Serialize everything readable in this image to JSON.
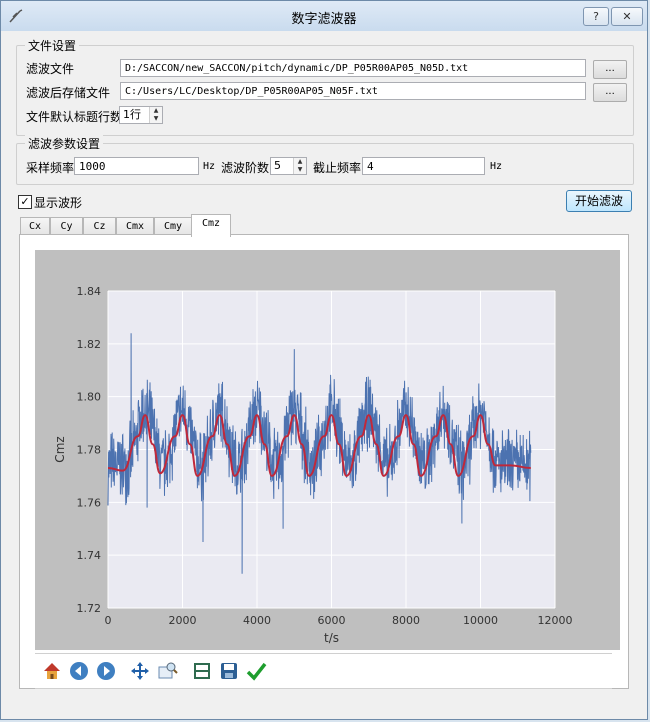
{
  "window": {
    "title": "数字滤波器",
    "help_label": "?",
    "close_label": "✕"
  },
  "file_settings": {
    "group_title": "文件设置",
    "input_label": "滤波文件",
    "input_path": "D:/SACCON/new_SACCON/pitch/dynamic/DP_P05R00AP05_N05D.txt",
    "output_label": "滤波后存储文件",
    "output_path": "C:/Users/LC/Desktop/DP_P05R00AP05_N05F.txt",
    "browse_label": "...",
    "header_rows_label": "文件默认标题行数",
    "header_rows_value": "1行"
  },
  "filter_params": {
    "group_title": "滤波参数设置",
    "sample_rate_label": "采样频率",
    "sample_rate_value": "1000",
    "hz_unit": "Hz",
    "order_label": "滤波阶数",
    "order_value": "5",
    "cutoff_label": "截止频率",
    "cutoff_value": "4"
  },
  "show_waveform_label": "显示波形",
  "show_waveform_checked": true,
  "start_button_label": "开始滤波",
  "tabs": [
    "Cx",
    "Cy",
    "Cz",
    "Cmx",
    "Cmy",
    "Cmz"
  ],
  "active_tab": "Cmz",
  "toolbar_icons": [
    "home-icon",
    "back-icon",
    "forward-icon",
    "pan-icon",
    "zoom-icon",
    "subplots-icon",
    "save-icon",
    "check-icon"
  ],
  "chart_data": {
    "type": "line",
    "xlabel": "t/s",
    "ylabel": "Cmz",
    "xlim": [
      0,
      12000
    ],
    "ylim": [
      1.72,
      1.84
    ],
    "xticks": [
      0,
      2000,
      4000,
      6000,
      8000,
      10000,
      12000
    ],
    "yticks": [
      1.72,
      1.74,
      1.76,
      1.78,
      1.8,
      1.82,
      1.84
    ],
    "grid": true,
    "series": [
      {
        "role": "raw",
        "color": "#4c72b0",
        "x_range": [
          0,
          11350
        ],
        "base": 1.774,
        "cycle_period": 1000,
        "cycle_amplitude": 0.02,
        "cycle_start": 500,
        "cycle_end": 10500,
        "noise_amplitude": 0.01,
        "spikes": [
          [
            620,
            1.824
          ],
          [
            3600,
            1.733
          ],
          [
            2550,
            1.745
          ],
          [
            1050,
            1.758
          ],
          [
            4700,
            1.75
          ],
          [
            5000,
            1.818
          ],
          [
            9500,
            1.752
          ]
        ]
      },
      {
        "role": "filtered",
        "color": "#c0283a",
        "points": [
          [
            0,
            1.773
          ],
          [
            400,
            1.772
          ],
          [
            800,
            1.785
          ],
          [
            1000,
            1.793
          ],
          [
            1200,
            1.782
          ],
          [
            1400,
            1.771
          ],
          [
            1800,
            1.785
          ],
          [
            2000,
            1.793
          ],
          [
            2200,
            1.782
          ],
          [
            2400,
            1.77
          ],
          [
            2800,
            1.785
          ],
          [
            3000,
            1.793
          ],
          [
            3200,
            1.782
          ],
          [
            3400,
            1.77
          ],
          [
            3800,
            1.785
          ],
          [
            4000,
            1.793
          ],
          [
            4200,
            1.782
          ],
          [
            4400,
            1.77
          ],
          [
            4800,
            1.785
          ],
          [
            5000,
            1.793
          ],
          [
            5200,
            1.782
          ],
          [
            5400,
            1.77
          ],
          [
            5800,
            1.785
          ],
          [
            6000,
            1.793
          ],
          [
            6200,
            1.782
          ],
          [
            6400,
            1.77
          ],
          [
            6800,
            1.785
          ],
          [
            7000,
            1.793
          ],
          [
            7200,
            1.782
          ],
          [
            7400,
            1.77
          ],
          [
            7800,
            1.785
          ],
          [
            8000,
            1.793
          ],
          [
            8200,
            1.782
          ],
          [
            8400,
            1.77
          ],
          [
            8800,
            1.785
          ],
          [
            9000,
            1.793
          ],
          [
            9200,
            1.782
          ],
          [
            9400,
            1.77
          ],
          [
            9800,
            1.785
          ],
          [
            10000,
            1.793
          ],
          [
            10200,
            1.782
          ],
          [
            10400,
            1.774
          ],
          [
            10800,
            1.774
          ],
          [
            11350,
            1.773
          ]
        ]
      }
    ]
  }
}
